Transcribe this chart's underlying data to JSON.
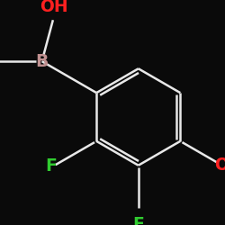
{
  "background_color": "#0a0a0a",
  "bond_color": "#e8e8e8",
  "bond_width": 1.8,
  "atom_colors": {
    "B": "#c09090",
    "O": "#ff2020",
    "F": "#30cc30",
    "C": "#e8e8e8"
  },
  "label_fontsize": 13.5,
  "small_fontsize": 11
}
